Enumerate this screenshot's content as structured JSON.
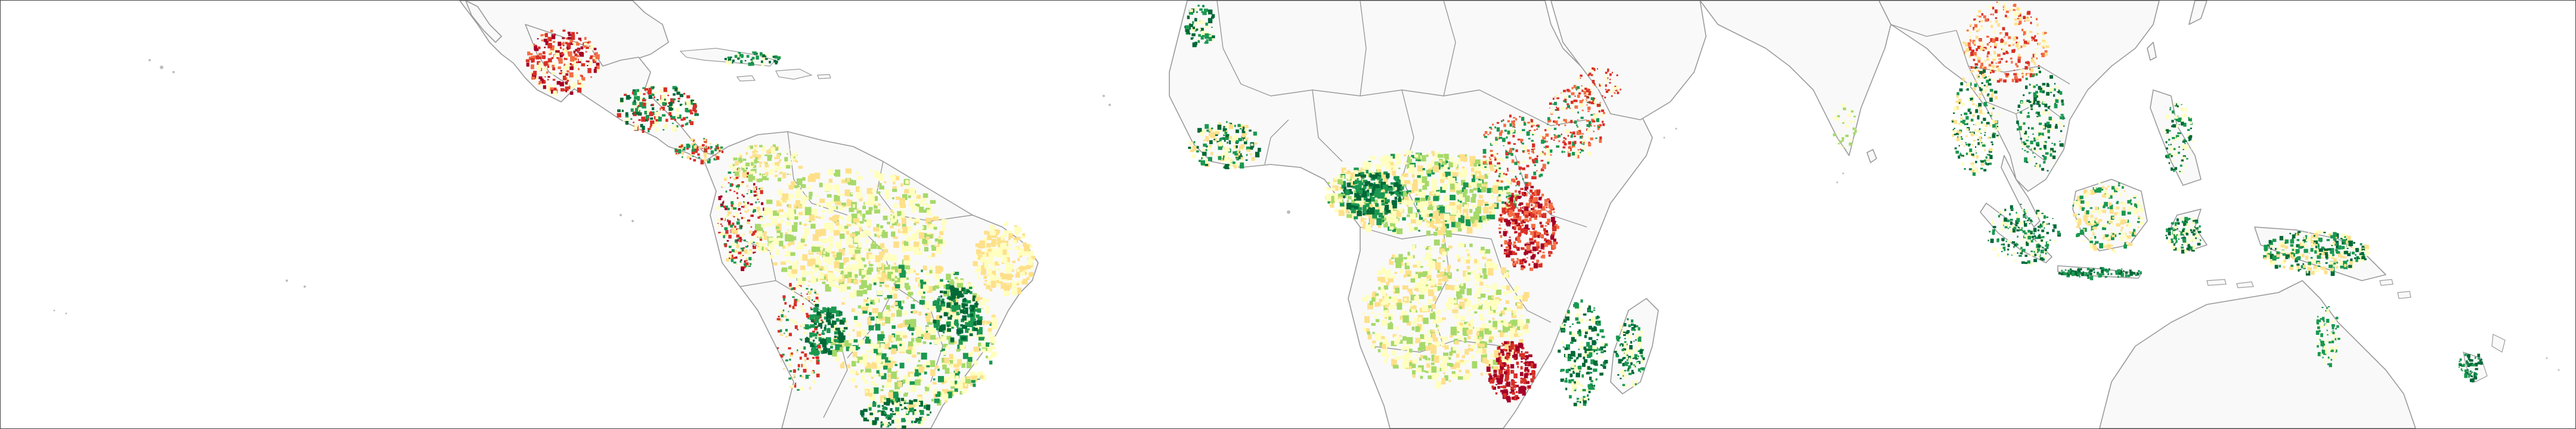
{
  "map": {
    "region": "pantropical",
    "palette": {
      "loss_high": "#a50026",
      "loss_mid": "#d73027",
      "loss_low": "#f46d43",
      "neutral_high": "#fee08b",
      "neutral_low": "#ffffbf",
      "gain_low": "#a6d96a",
      "gain_mid": "#1a9850",
      "gain_high": "#006837",
      "land": "#f9f9f9",
      "boundary": "#9a9a9a",
      "ocean": "#ffffff"
    }
  }
}
